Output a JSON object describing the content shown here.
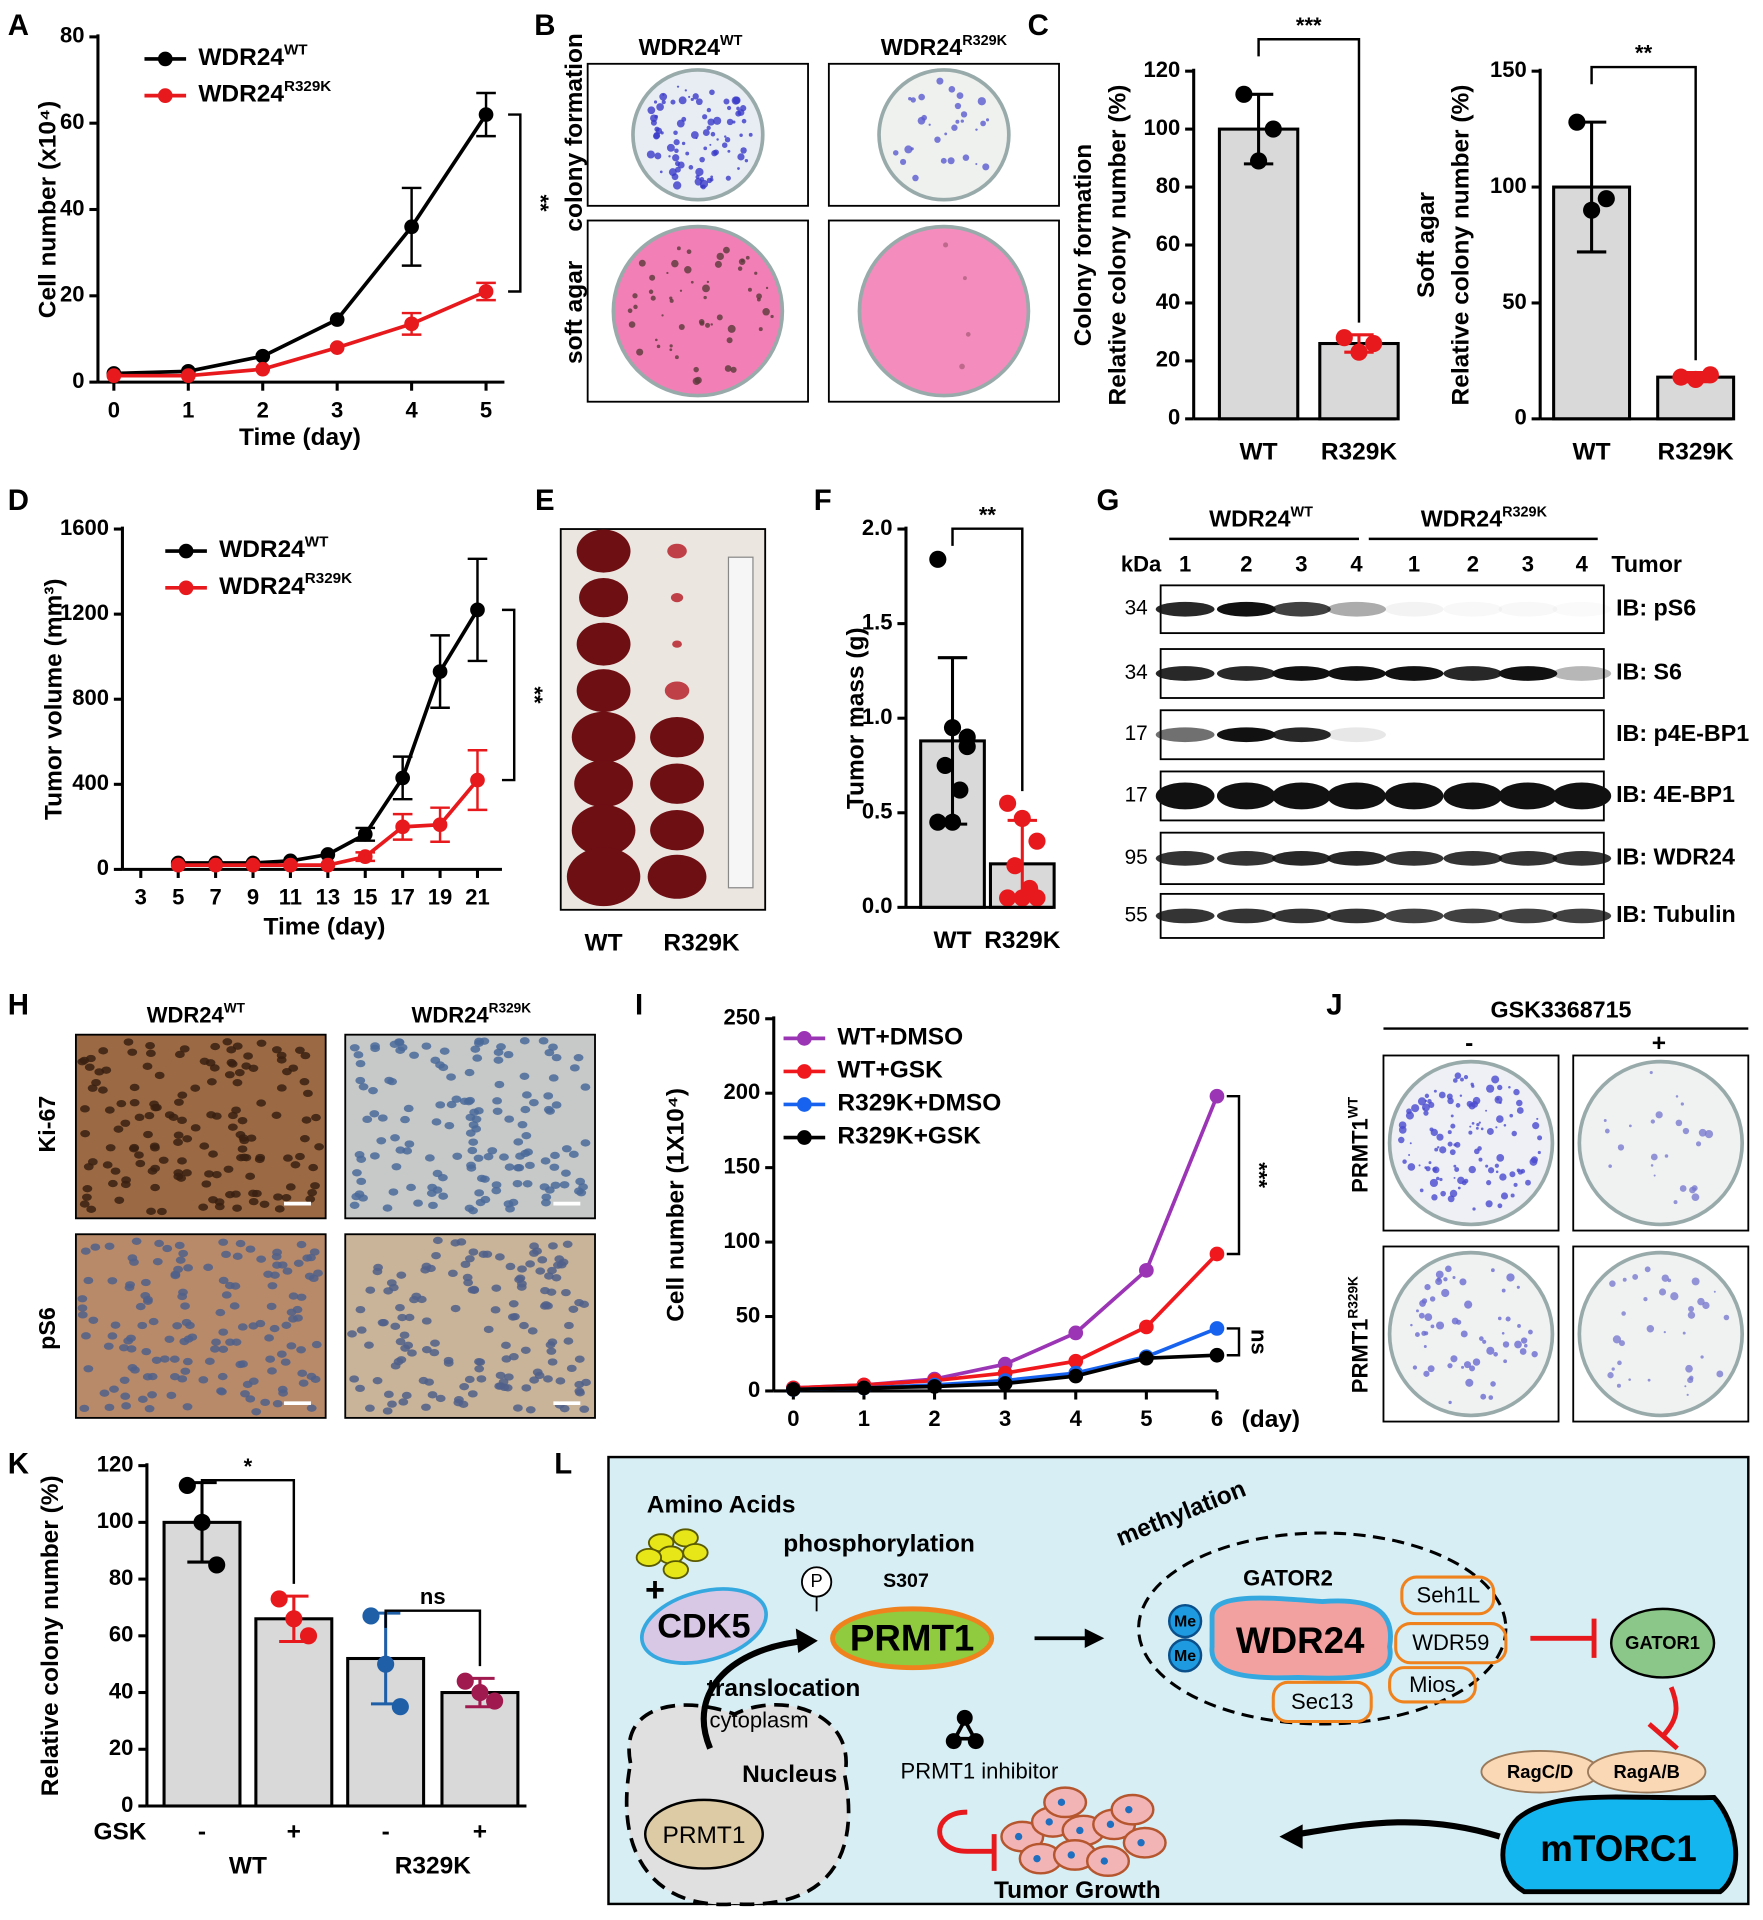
{
  "panel_labels": [
    "A",
    "B",
    "C",
    "D",
    "E",
    "F",
    "G",
    "H",
    "I",
    "J",
    "K",
    "L"
  ],
  "chart_data": [
    {
      "type": "line",
      "xlabel": "Time (day)",
      "ylabel": [
        "Cell number (x10⁴)"
      ],
      "x": [
        0,
        1,
        2,
        3,
        4,
        5
      ],
      "xlim": [
        0,
        5
      ],
      "xticks": [
        0,
        1,
        2,
        3,
        4,
        5
      ],
      "ylim": [
        0,
        80
      ],
      "yticks": [
        0,
        20,
        40,
        60,
        80
      ],
      "series": [
        {
          "name": "WDR24",
          "superscript": "WT",
          "color": "#000000",
          "values": [
            2,
            2.5,
            6,
            14.5,
            36,
            62
          ],
          "errors": [
            null,
            null,
            null,
            null,
            9,
            5
          ]
        },
        {
          "name": "WDR24",
          "superscript": "R329K",
          "color": "#e8191c",
          "values": [
            1.5,
            1.5,
            3,
            8,
            13.5,
            21
          ],
          "errors": [
            null,
            null,
            null,
            null,
            2.5,
            2
          ]
        }
      ],
      "significance": [
        "**"
      ]
    },
    {
      "type": "bar",
      "ylabel": [
        "Colony formation",
        "Relative colony number (%)"
      ],
      "categories": [
        "WT",
        "R329K"
      ],
      "values": [
        100,
        26
      ],
      "errors": [
        12,
        3
      ],
      "points": [
        [
          112,
          89,
          100
        ],
        [
          28,
          23,
          26
        ]
      ],
      "colors": [
        "#000000",
        "#e8191c"
      ],
      "bar_color": "#d9d9d9",
      "ylim": [
        0,
        120
      ],
      "yticks": [
        0,
        20,
        40,
        60,
        80,
        100,
        120
      ],
      "significance": [
        "***"
      ]
    },
    {
      "type": "bar",
      "ylabel": [
        "Soft agar",
        "Relative colony number (%)"
      ],
      "categories": [
        "WT",
        "R329K"
      ],
      "values": [
        100,
        18
      ],
      "errors": [
        28,
        2
      ],
      "points": [
        [
          128,
          90,
          95
        ],
        [
          18,
          17,
          19
        ]
      ],
      "colors": [
        "#000000",
        "#e8191c"
      ],
      "bar_color": "#d9d9d9",
      "ylim": [
        0,
        150
      ],
      "yticks": [
        0,
        50,
        100,
        150
      ],
      "significance": [
        "**"
      ]
    },
    {
      "type": "line",
      "xlabel": "Time (day)",
      "ylabel": [
        "Tumor volume (mm³)"
      ],
      "x": [
        5,
        7,
        9,
        11,
        13,
        15,
        17,
        19,
        21
      ],
      "xlim": [
        3,
        21
      ],
      "xticks": [
        3,
        5,
        7,
        9,
        11,
        13,
        15,
        17,
        19,
        21
      ],
      "ylim": [
        0,
        1600
      ],
      "yticks": [
        0,
        400,
        800,
        1200,
        1600
      ],
      "series": [
        {
          "name": "WDR24",
          "superscript": "WT",
          "color": "#000000",
          "values": [
            30,
            30,
            30,
            40,
            70,
            165,
            430,
            930,
            1220
          ],
          "errors": [
            null,
            null,
            null,
            null,
            null,
            30,
            100,
            170,
            240
          ]
        },
        {
          "name": "WDR24",
          "superscript": "R329K",
          "color": "#e8191c",
          "values": [
            20,
            20,
            20,
            20,
            20,
            60,
            200,
            210,
            420
          ],
          "errors": [
            null,
            null,
            null,
            null,
            null,
            20,
            60,
            80,
            140
          ]
        }
      ],
      "significance": [
        "**"
      ]
    },
    {
      "type": "bar",
      "ylabel": [
        "Tumor mass (g)"
      ],
      "categories": [
        "WT",
        "R329K"
      ],
      "values": [
        0.88,
        0.23
      ],
      "errors": [
        0.44,
        0.23
      ],
      "points": [
        [
          1.84,
          0.95,
          0.85,
          0.75,
          0.62,
          0.45,
          0.45,
          0.9
        ],
        [
          0.55,
          0.47,
          0.35,
          0.22,
          0.1,
          0.05,
          0.05,
          0.05
        ]
      ],
      "colors": [
        "#000000",
        "#e8191c"
      ],
      "bar_color": "#d9d9d9",
      "ylim": [
        0,
        2
      ],
      "yticks": [
        {
          "value": 0,
          "label": "0.0"
        },
        0.5,
        {
          "value": 1,
          "label": "1.0"
        },
        1.5,
        {
          "value": 2,
          "label": "2.0"
        }
      ],
      "significance": [
        "**"
      ]
    },
    {
      "type": "line",
      "xlabel": "(day)",
      "ylabel": [
        "Cell number (1X10⁴)"
      ],
      "x": [
        0,
        1,
        2,
        3,
        4,
        5,
        6
      ],
      "xlim": [
        0,
        6
      ],
      "xticks": [
        0,
        1,
        2,
        3,
        4,
        5,
        6
      ],
      "ylim": [
        0,
        250
      ],
      "yticks": [
        0,
        50,
        100,
        150,
        200,
        250
      ],
      "series": [
        {
          "name": "WT+DMSO",
          "color": "#9b34b5",
          "values": [
            2,
            4,
            8,
            18,
            39,
            81,
            198
          ]
        },
        {
          "name": "WT+GSK",
          "color": "#f0181d",
          "values": [
            2,
            4,
            7,
            12,
            20,
            43,
            92
          ]
        },
        {
          "name": "R329K+DMSO",
          "color": "#1763f0",
          "values": [
            1,
            2,
            4,
            7,
            12,
            23,
            42
          ]
        },
        {
          "name": "R329K+GSK",
          "color": "#000000",
          "values": [
            1,
            2,
            3,
            5,
            10,
            22,
            24
          ]
        }
      ],
      "significance": [
        "***",
        "ns"
      ]
    },
    {
      "type": "bar",
      "ylabel": [
        "Relative colony number (%)"
      ],
      "categories": [
        "-",
        "+",
        "-",
        "+"
      ],
      "groups": [
        "WT",
        "R329K"
      ],
      "group_label": "GSK",
      "values": [
        100,
        66,
        52,
        40
      ],
      "errors": [
        14,
        8,
        16,
        5
      ],
      "points": [
        [
          113,
          100,
          85
        ],
        [
          73,
          66,
          60
        ],
        [
          67,
          50,
          35
        ],
        [
          44,
          40,
          37
        ]
      ],
      "colors": [
        "#000000",
        "#e8191c",
        "#1f5fa8",
        "#a0194f"
      ],
      "bar_color": "#d9d9d9",
      "ylim": [
        0,
        120
      ],
      "yticks": [
        0,
        20,
        40,
        60,
        80,
        100,
        120
      ],
      "significance": [
        "*",
        "ns"
      ]
    }
  ],
  "colony_assay": {
    "columns": [
      {
        "name": "WDR24",
        "superscript": "WT"
      },
      {
        "name": "WDR24",
        "superscript": "R329K"
      }
    ],
    "rows": [
      "colony formation",
      "soft agar"
    ]
  },
  "tumor_photo": {
    "labels": [
      "WT",
      "R329K"
    ]
  },
  "western_blot": {
    "groups": [
      {
        "name": "WDR24",
        "superscript": "WT"
      },
      {
        "name": "WDR24",
        "superscript": "R329K"
      }
    ],
    "kda_label": "kDa",
    "lanes": [
      "1",
      "2",
      "3",
      "4",
      "1",
      "2",
      "3",
      "4"
    ],
    "lane_title": "Tumor",
    "rows": [
      {
        "kda": "34",
        "label": "IB: pS6"
      },
      {
        "kda": "34",
        "label": "IB: S6"
      },
      {
        "kda": "17",
        "label": "IB: p4E-BP1"
      },
      {
        "kda": "17",
        "label": "IB: 4E-BP1"
      },
      {
        "kda": "95",
        "label": "IB: WDR24"
      },
      {
        "kda": "55",
        "label": "IB: Tubulin"
      }
    ]
  },
  "ihc": {
    "columns": [
      {
        "name": "WDR24",
        "superscript": "WT"
      },
      {
        "name": "WDR24",
        "superscript": "R329K"
      }
    ],
    "rows": [
      "Ki-67",
      "pS6"
    ]
  },
  "prmt1_colony_assay": {
    "treatment": "GSK3368715",
    "columns": [
      "-",
      "+"
    ],
    "rows": [
      {
        "name": "PRMT1",
        "superscript": "WT"
      },
      {
        "name": "PRMT1",
        "superscript": "R329K"
      }
    ]
  },
  "pathway": {
    "labels": [
      "Amino Acids",
      "+",
      "CDK5",
      "phosphorylation",
      "P",
      "S307",
      "PRMT1",
      "methylation",
      "GATOR2",
      "Me",
      "Me",
      "WDR24",
      "Seh1L",
      "WDR59",
      "Mios",
      "Sec13",
      "GATOR1",
      "RagC/D",
      "RagA/B",
      "mTORC1",
      "translocation",
      "cytoplasm",
      "Nucleus",
      "PRMT1",
      "PRMT1 inhibitor",
      "Tumor Growth"
    ]
  }
}
